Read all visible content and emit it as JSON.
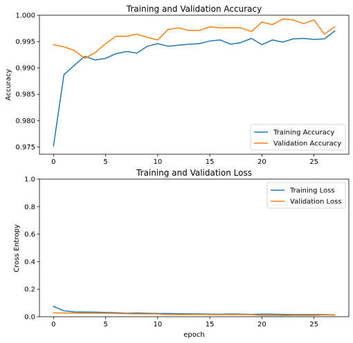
{
  "chart_data": [
    {
      "type": "line",
      "title": "Training and Validation Accuracy",
      "xlabel": "",
      "ylabel": "Accuracy",
      "xlim": [
        -1.35,
        28.35
      ],
      "ylim": [
        0.9736,
        1.0
      ],
      "xticks": [
        0,
        5,
        10,
        15,
        20,
        25
      ],
      "yticks": [
        0.975,
        0.98,
        0.985,
        0.99,
        0.995,
        1.0
      ],
      "ytick_labels": [
        "0.975",
        "0.980",
        "0.985",
        "0.990",
        "0.995",
        "1.000"
      ],
      "grid": false,
      "legend_position": "lower-right",
      "x": [
        0,
        1,
        2,
        3,
        4,
        5,
        6,
        7,
        8,
        9,
        10,
        11,
        12,
        13,
        14,
        15,
        16,
        17,
        18,
        19,
        20,
        21,
        22,
        23,
        24,
        25,
        26,
        27
      ],
      "series": [
        {
          "name": "Training Accuracy",
          "color": "#1f77b4",
          "values": [
            0.9752,
            0.9887,
            0.9905,
            0.9922,
            0.9915,
            0.9918,
            0.9927,
            0.9931,
            0.9928,
            0.9941,
            0.9946,
            0.9941,
            0.9943,
            0.9945,
            0.9946,
            0.9951,
            0.9953,
            0.9945,
            0.9948,
            0.9956,
            0.9944,
            0.9953,
            0.9949,
            0.9955,
            0.9956,
            0.9954,
            0.9955,
            0.997
          ]
        },
        {
          "name": "Validation Accuracy",
          "color": "#ff7f0e",
          "values": [
            0.9944,
            0.994,
            0.9933,
            0.9918,
            0.9929,
            0.9946,
            0.996,
            0.996,
            0.9964,
            0.9958,
            0.9953,
            0.9973,
            0.9976,
            0.9971,
            0.9971,
            0.9978,
            0.9976,
            0.9976,
            0.9976,
            0.9969,
            0.9987,
            0.9982,
            0.9993,
            0.9991,
            0.9984,
            0.9991,
            0.9964,
            0.9978
          ]
        }
      ]
    },
    {
      "type": "line",
      "title": "Training and Validation Loss",
      "xlabel": "epoch",
      "ylabel": "Cross Entropy",
      "xlim": [
        -1.35,
        28.35
      ],
      "ylim": [
        0,
        1.0
      ],
      "xticks": [
        0,
        5,
        10,
        15,
        20,
        25
      ],
      "yticks": [
        0.0,
        0.2,
        0.4,
        0.6,
        0.8,
        1.0
      ],
      "ytick_labels": [
        "0.0",
        "0.2",
        "0.4",
        "0.6",
        "0.8",
        "1.0"
      ],
      "grid": false,
      "legend_position": "upper-right",
      "x": [
        0,
        1,
        2,
        3,
        4,
        5,
        6,
        7,
        8,
        9,
        10,
        11,
        12,
        13,
        14,
        15,
        16,
        17,
        18,
        19,
        20,
        21,
        22,
        23,
        24,
        25,
        26,
        27
      ],
      "series": [
        {
          "name": "Training Loss",
          "color": "#1f77b4",
          "values": [
            0.075,
            0.043,
            0.035,
            0.034,
            0.033,
            0.031,
            0.029,
            0.025,
            0.027,
            0.025,
            0.023,
            0.023,
            0.022,
            0.021,
            0.021,
            0.019,
            0.018,
            0.02,
            0.019,
            0.017,
            0.019,
            0.018,
            0.017,
            0.016,
            0.016,
            0.016,
            0.016,
            0.013
          ]
        },
        {
          "name": "Validation Loss",
          "color": "#ff7f0e",
          "values": [
            0.028,
            0.027,
            0.027,
            0.026,
            0.026,
            0.025,
            0.024,
            0.022,
            0.021,
            0.02,
            0.02,
            0.015,
            0.016,
            0.016,
            0.017,
            0.015,
            0.015,
            0.016,
            0.015,
            0.015,
            0.01,
            0.01,
            0.009,
            0.01,
            0.01,
            0.01,
            0.013,
            0.011
          ]
        }
      ]
    }
  ]
}
